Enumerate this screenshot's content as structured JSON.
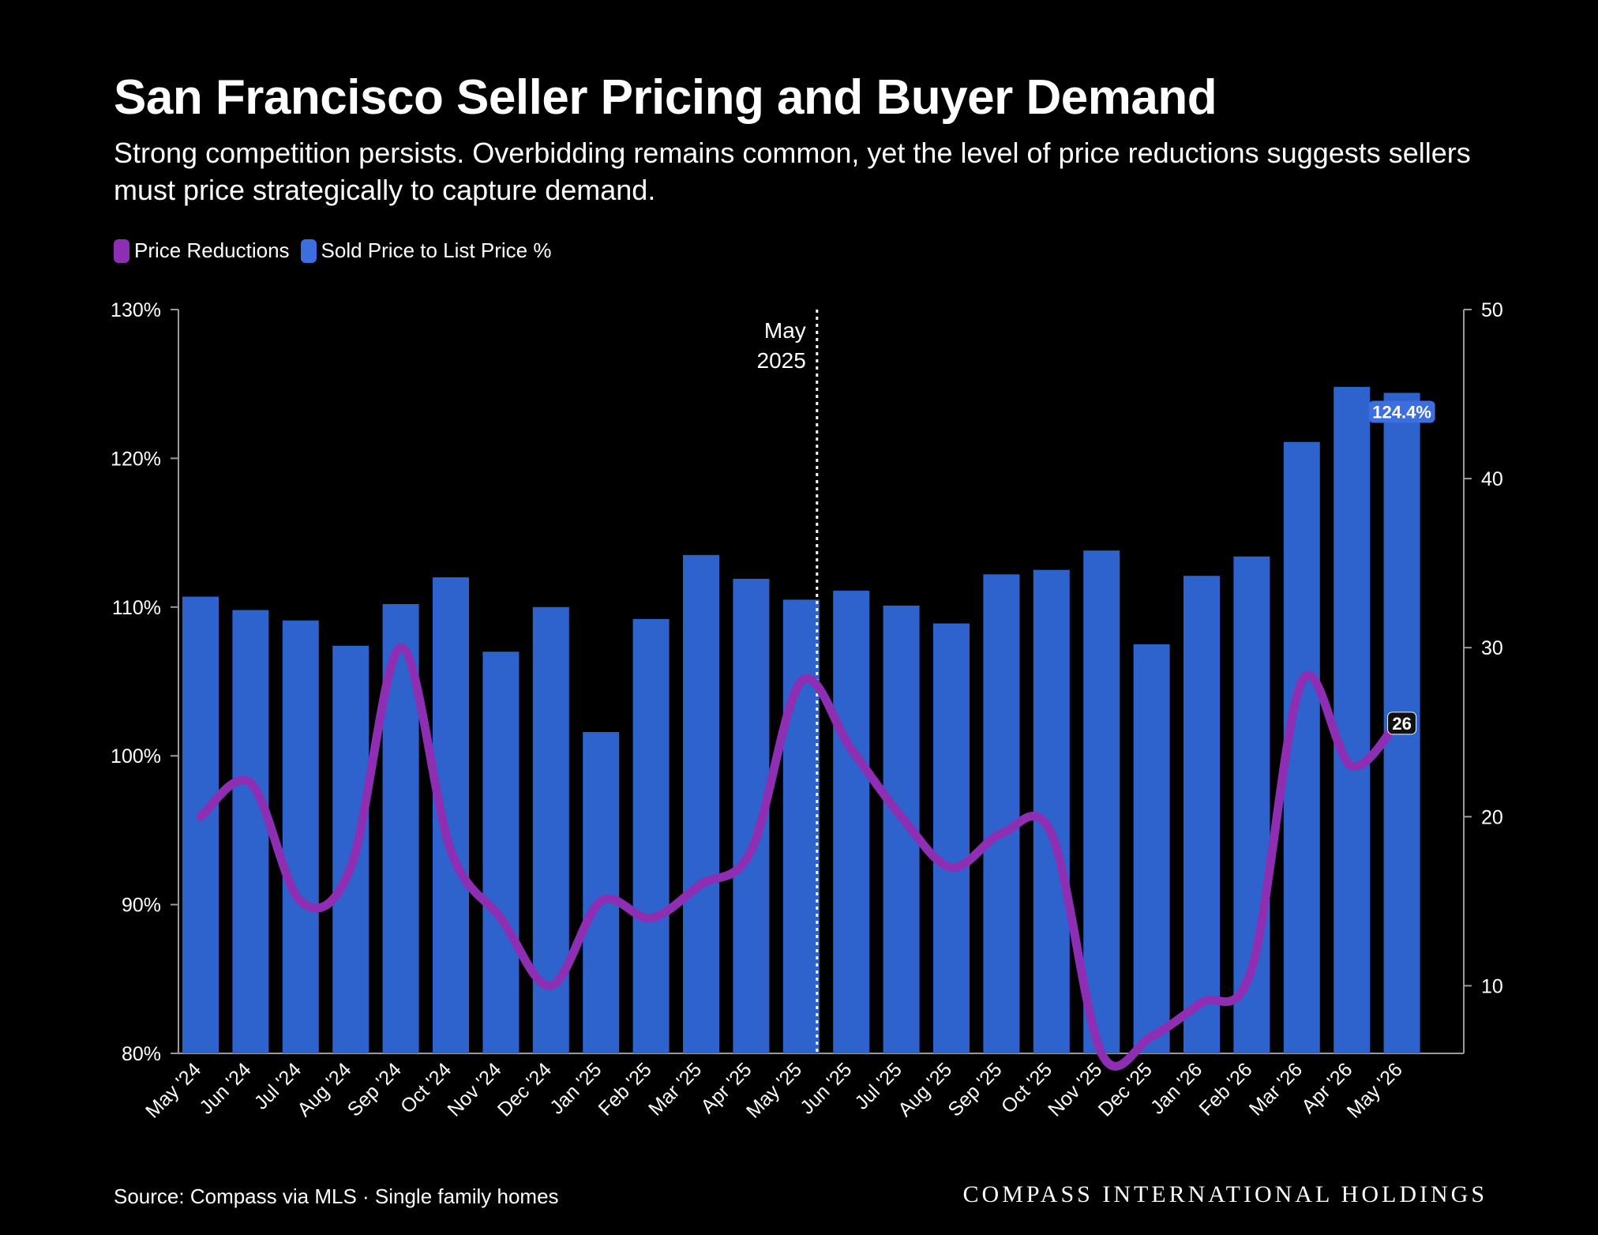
{
  "title": "San Francisco Seller Pricing and Buyer Demand",
  "subtitle": "Strong competition persists. Overbidding remains common, yet the level of price reductions suggests sellers must price strategically to capture demand.",
  "legend": [
    {
      "label": "Price Reductions",
      "color": "#8e2fb3"
    },
    {
      "label": "Sold Price to List Price %",
      "color": "#3c6ee0"
    }
  ],
  "source": "Source: Compass via MLS · Single family homes",
  "brand": "COMPASS INTERNATIONAL HOLDINGS",
  "chart_data": {
    "type": "bar",
    "categories": [
      "May '24",
      "Jun '24",
      "Jul '24",
      "Aug '24",
      "Sep '24",
      "Oct '24",
      "Nov '24",
      "Dec '24",
      "Jan '25",
      "Feb '25",
      "Mar '25",
      "Apr '25",
      "May '25",
      "Jun '25",
      "Jul '25",
      "Aug '25",
      "Sep '25",
      "Oct '25",
      "Nov '25",
      "Dec '25",
      "Jan '26",
      "Feb '26",
      "Mar '26",
      "Apr '26",
      "May '26"
    ],
    "series": [
      {
        "name": "Sold Price to List Price %",
        "type": "bar",
        "axis": "left",
        "color": "#2e62cc",
        "values": [
          110.7,
          109.8,
          109.1,
          107.4,
          110.2,
          112.0,
          107.0,
          110.0,
          101.6,
          109.2,
          113.5,
          111.9,
          110.5,
          111.1,
          110.1,
          108.9,
          112.2,
          112.5,
          113.8,
          107.5,
          112.1,
          113.4,
          121.1,
          124.8,
          124.4
        ]
      },
      {
        "name": "Price Reductions",
        "type": "line",
        "axis": "right",
        "color": "#8e2fb3",
        "values": [
          20,
          22,
          15,
          17,
          30,
          18,
          14,
          10,
          15,
          14,
          16,
          18,
          28,
          24,
          20,
          17,
          19,
          19,
          6,
          7,
          9,
          11,
          28,
          23,
          26
        ]
      }
    ],
    "left_axis": {
      "min": 80,
      "max": 130,
      "ticks": [
        80,
        90,
        100,
        110,
        120,
        130
      ],
      "format": "percent"
    },
    "right_axis": {
      "min": 6,
      "max": 50,
      "ticks": [
        10,
        20,
        30,
        40,
        50
      ]
    },
    "annotation": {
      "category": "May '25",
      "line1": "May",
      "line2": "2025"
    },
    "end_labels": {
      "bar": "124.4%",
      "line": "26"
    },
    "legend_position": "top-left"
  }
}
